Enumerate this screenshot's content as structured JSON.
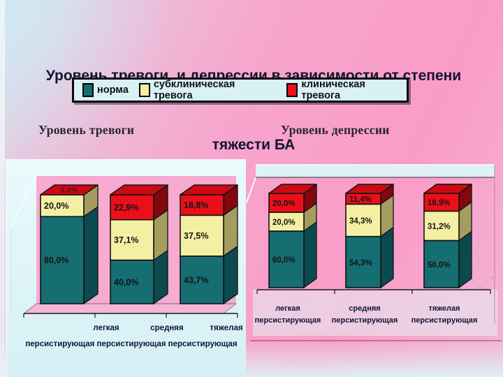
{
  "slide": {
    "title_line1": "Уровень тревоги  и депрессии в зависимости от степени",
    "title_line2": "тяжести БА"
  },
  "legend": {
    "items": [
      {
        "label": "норма",
        "color": "#156e72"
      },
      {
        "label": "субклиническая тревога",
        "color": "#f4efa3"
      },
      {
        "label": "клиническая тревога",
        "color": "#ec0f1a"
      }
    ]
  },
  "sections": {
    "left_title": "Уровень тревоги",
    "right_title": "Уровень депрессии"
  },
  "colors": {
    "background_pink": "#fa9cc8",
    "background_blue": "#cfe7f0",
    "panel_cyan": "#dcf2f6",
    "wall_pink": "#f7abd0",
    "title_text": "#141430"
  },
  "chart_data": [
    {
      "type": "bar",
      "stacked": true,
      "title": "Уровень тревоги",
      "xlabel": "",
      "ylabel": "",
      "ylim": [
        0,
        100
      ],
      "value_suffix": "%",
      "categories": [
        "легкая персистирующая",
        "средняя персистирующая",
        "тяжелая персистирующая"
      ],
      "series": [
        {
          "name": "норма",
          "values": [
            80.0,
            40.0,
            43.7
          ],
          "labels": [
            "80,0%",
            "40,0%",
            "43,7%"
          ],
          "color": "#156e72",
          "color_side": "#0b4b4f",
          "color_top": "#1e8a8c"
        },
        {
          "name": "субклиническая тревога",
          "values": [
            20.0,
            37.1,
            37.5
          ],
          "labels": [
            "20,0%",
            "37,1%",
            "37,5%"
          ],
          "color": "#f4efa3",
          "color_side": "#a59c60",
          "color_top": "#d8d190"
        },
        {
          "name": "клиническая тревога",
          "values": [
            0.0,
            22.9,
            18.8
          ],
          "labels": [
            "0,0%",
            "22,9%",
            "18,8%"
          ],
          "color": "#ec0f1a",
          "color_side": "#83070f",
          "color_top": "#cc0a14"
        }
      ]
    },
    {
      "type": "bar",
      "stacked": true,
      "title": "Уровень депрессии",
      "xlabel": "",
      "ylabel": "",
      "ylim": [
        0,
        100
      ],
      "value_suffix": "%",
      "categories": [
        "легкая персистирующая",
        "средняя персистирующая",
        "тяжелая персистирующая"
      ],
      "series": [
        {
          "name": "норма",
          "values": [
            60.0,
            54.3,
            50.0
          ],
          "labels": [
            "60,0%",
            "54,3%",
            "50,0%"
          ],
          "color": "#156e72",
          "color_side": "#0b4b4f",
          "color_top": "#1e8a8c"
        },
        {
          "name": "субклиническая тревога",
          "values": [
            20.0,
            34.3,
            31.2
          ],
          "labels": [
            "20,0%",
            "34,3%",
            "31,2%"
          ],
          "color": "#f4efa3",
          "color_side": "#a59c60",
          "color_top": "#d8d190"
        },
        {
          "name": "клиническая тревога",
          "values": [
            20.0,
            11.4,
            18.9
          ],
          "labels": [
            "20,0%",
            "11,4%",
            "18,9%"
          ],
          "color": "#ec0f1a",
          "color_side": "#83070f",
          "color_top": "#cc0a14"
        }
      ]
    }
  ]
}
